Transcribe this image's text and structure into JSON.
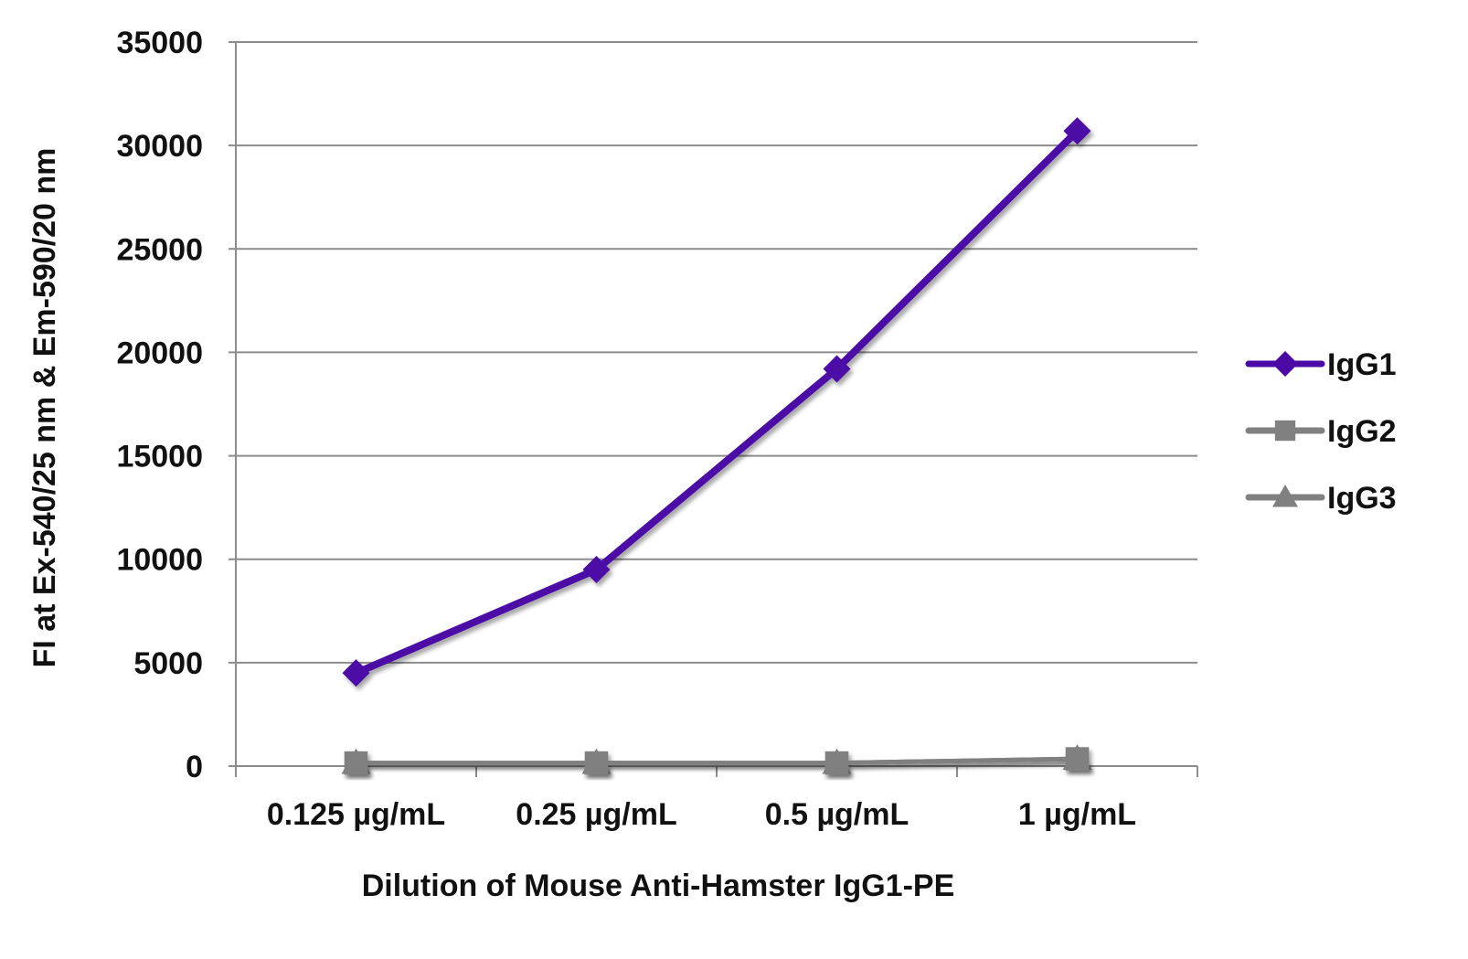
{
  "chart_data": {
    "type": "line",
    "title": "",
    "xlabel": "Dilution of Mouse Anti-Hamster IgG1-PE",
    "ylabel": "FI at Ex-540/25 nm & Em-590/20 nm",
    "categories": [
      "0.125 µg/mL",
      "0.25 µg/mL",
      "0.5 µg/mL",
      "1 µg/mL"
    ],
    "ylim": [
      0,
      35000
    ],
    "yticks": [
      0,
      5000,
      10000,
      15000,
      20000,
      25000,
      30000,
      35000
    ],
    "grid": true,
    "legend_position": "right",
    "series": [
      {
        "name": "IgG1",
        "values": [
          4500,
          9500,
          19200,
          30700
        ],
        "color": "#4B0AA6",
        "marker": "diamond"
      },
      {
        "name": "IgG2",
        "values": [
          150,
          150,
          150,
          350
        ],
        "color": "#808080",
        "marker": "square"
      },
      {
        "name": "IgG3",
        "values": [
          150,
          150,
          150,
          350
        ],
        "color": "#808080",
        "marker": "triangle"
      }
    ]
  }
}
